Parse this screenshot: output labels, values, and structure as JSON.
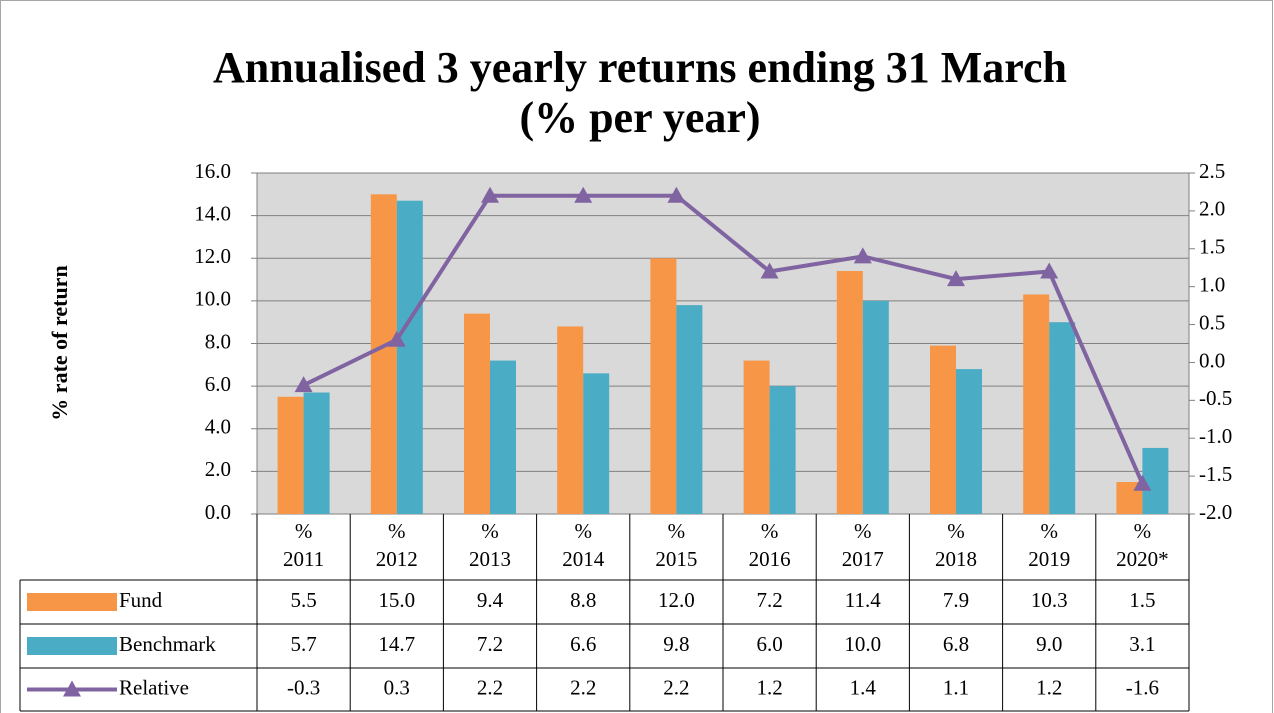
{
  "chart_data": {
    "type": "bar",
    "title": "Annualised 3 yearly returns ending 31 March\n(% per year)",
    "y_label": "% rate of return",
    "categories": [
      "%\n2011",
      "%\n2012",
      "%\n2013",
      "%\n2014",
      "%\n2015",
      "%\n2016",
      "%\n2017",
      "%\n2018",
      "%\n2019",
      "%\n2020*"
    ],
    "series": [
      {
        "name": "Fund",
        "type": "bar",
        "color": "#f79646",
        "values": [
          5.5,
          15.0,
          9.4,
          8.8,
          12.0,
          7.2,
          11.4,
          7.9,
          10.3,
          1.5
        ],
        "value_labels": [
          "5.5",
          "15.0",
          "9.4",
          "8.8",
          "12.0",
          "7.2",
          "11.4",
          "7.9",
          "10.3",
          "1.5"
        ]
      },
      {
        "name": "Benchmark",
        "type": "bar",
        "color": "#4bacc6",
        "values": [
          5.7,
          14.7,
          7.2,
          6.6,
          9.8,
          6.0,
          10.0,
          6.8,
          9.0,
          3.1
        ],
        "value_labels": [
          "5.7",
          "14.7",
          "7.2",
          "6.6",
          "9.8",
          "6.0",
          "10.0",
          "6.8",
          "9.0",
          "3.1"
        ]
      },
      {
        "name": "Relative",
        "type": "line",
        "axis": "y2",
        "color": "#8064a2",
        "values": [
          -0.3,
          0.3,
          2.2,
          2.2,
          2.2,
          1.2,
          1.4,
          1.1,
          1.2,
          -1.6
        ]
      }
    ],
    "ylim": [
      0,
      16
    ],
    "yticks": [
      {
        "value": 0,
        "label": "0.0"
      },
      {
        "value": 2,
        "label": "2.0"
      },
      {
        "value": 4,
        "label": "4.0"
      },
      {
        "value": 6,
        "label": "6.0"
      },
      {
        "value": 8,
        "label": "8.0"
      },
      {
        "value": 10,
        "label": "10.0"
      },
      {
        "value": 12,
        "label": "12.0"
      },
      {
        "value": 14,
        "label": "14.0"
      },
      {
        "value": 16,
        "label": "16.0"
      }
    ],
    "y2lim": [
      -2,
      2.5
    ],
    "y2ticks": [
      {
        "value": -2,
        "label": "-2.0"
      },
      -1.5,
      {
        "value": -1,
        "label": "-1.0"
      },
      -0.5,
      {
        "value": 0,
        "label": "0.0"
      },
      0.5,
      {
        "value": 1,
        "label": "1.0"
      },
      1.5,
      {
        "value": 2,
        "label": "2.0"
      },
      2.5
    ],
    "grid": true
  }
}
